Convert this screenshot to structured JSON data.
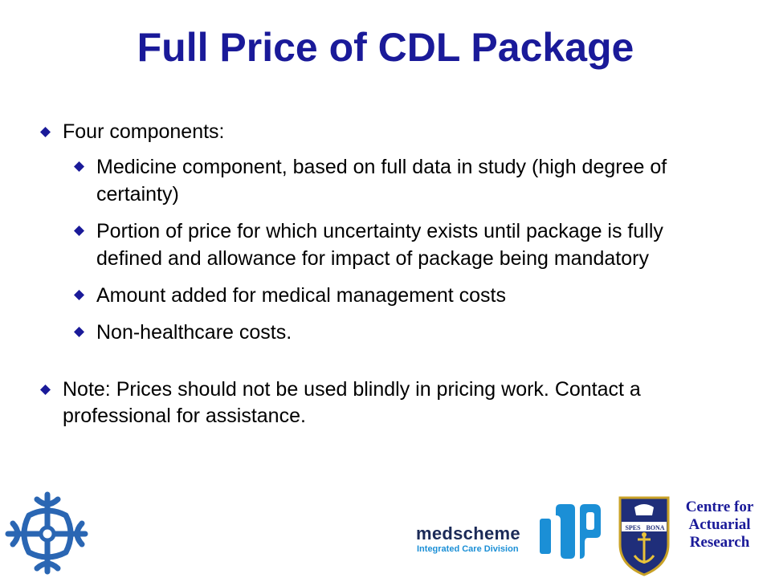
{
  "title": "Full Price of CDL Package",
  "colors": {
    "title": "#1a1a99",
    "marker": "#1a1a99",
    "logo_blue": "#2a66b3",
    "medscheme_navy": "#1b2a57",
    "medscheme_cyan": "#1b8fd6"
  },
  "bullets": [
    {
      "text": "Four components:",
      "level": 1
    },
    {
      "text": "Medicine component, based on full data in study (high degree of certainty)",
      "level": 2
    },
    {
      "text": "Portion of price for which uncertainty exists until package is fully defined and allowance for impact of package being mandatory",
      "level": 2
    },
    {
      "text": "Amount added for medical management costs",
      "level": 2
    },
    {
      "text": "Non-healthcare costs.",
      "level": 2
    },
    {
      "text": "Note: Prices should not be used blindly in pricing work. Contact a professional for assistance.",
      "level": 1
    }
  ],
  "footer": {
    "left_logo_icon": "celtic-cross-logo-icon",
    "medscheme_name": "medscheme",
    "medscheme_division": "Integrated Care Division",
    "medscheme_logo_icon": "medscheme-mark-icon",
    "crest_icon": "university-crest-icon",
    "crest_lettering": [
      "SPES",
      "BONA"
    ],
    "centre_lines": [
      "Centre for",
      "Actuarial",
      "Research"
    ]
  }
}
